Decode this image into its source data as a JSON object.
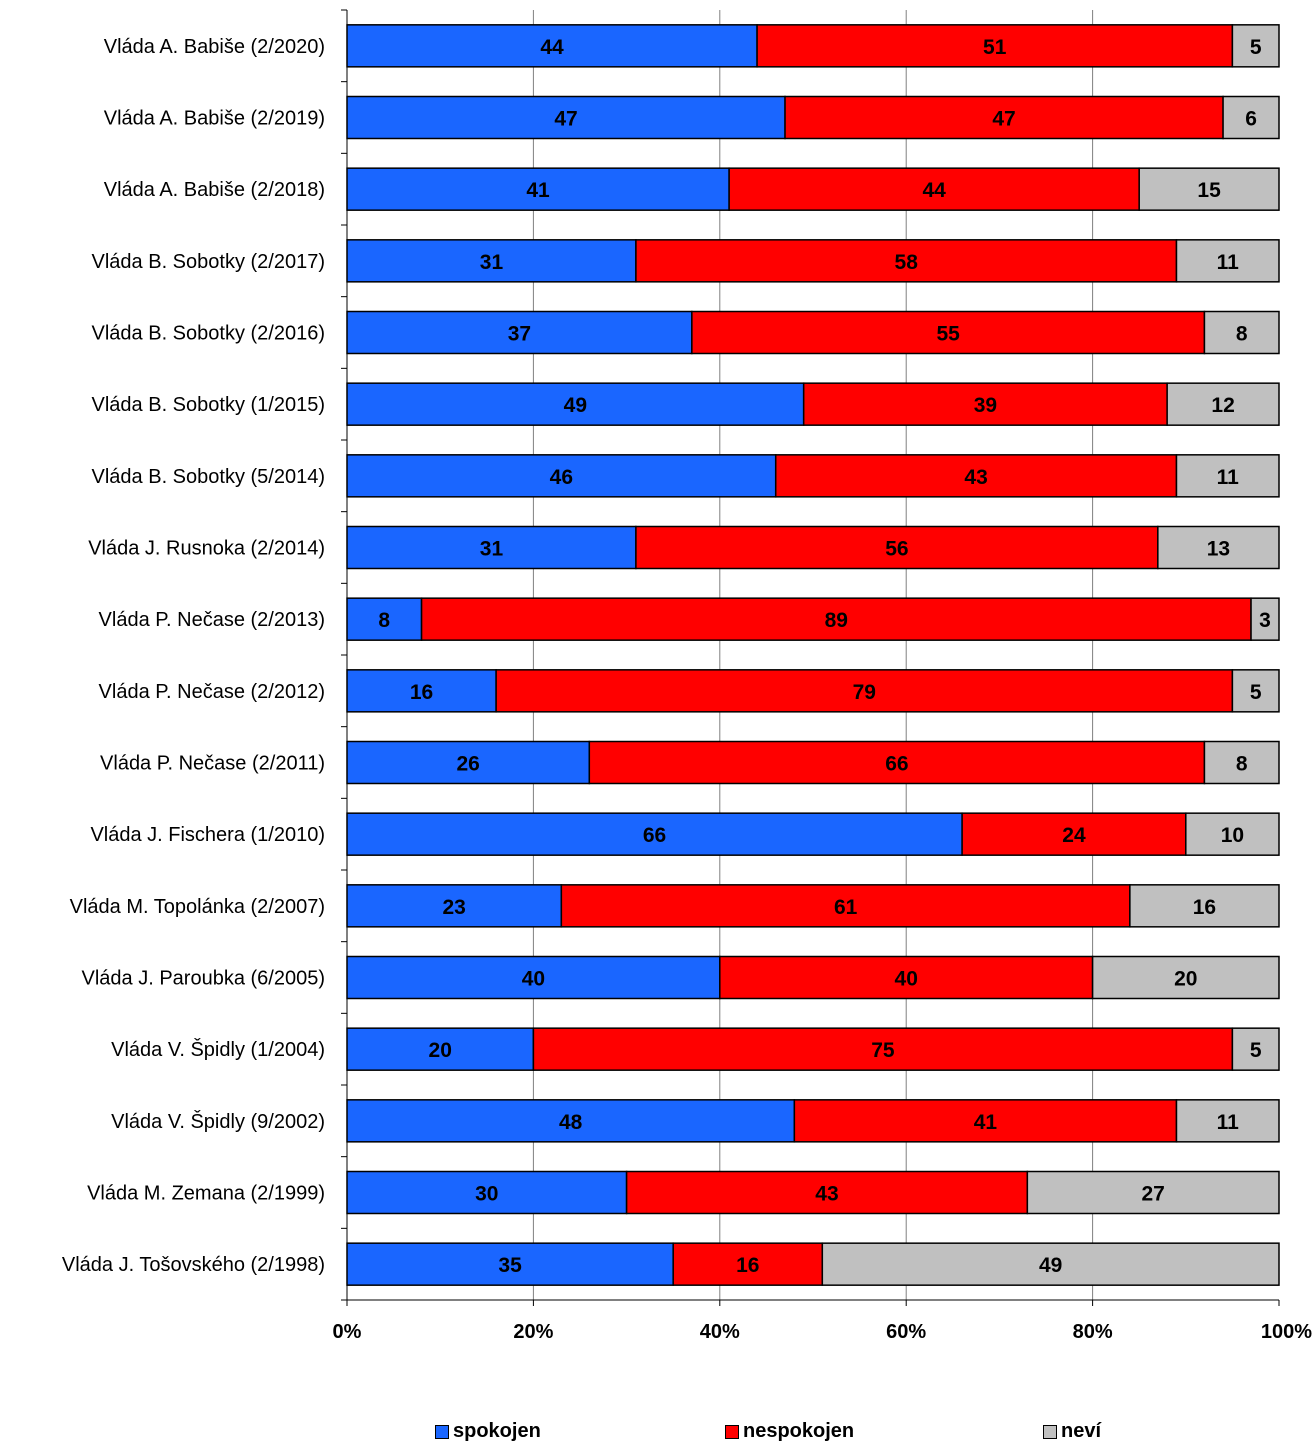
{
  "chart_data": {
    "type": "bar",
    "orientation": "horizontal",
    "stacked": "percent",
    "categories": [
      "Vláda A. Babiše (2/2020)",
      "Vláda A. Babiše (2/2019)",
      "Vláda A. Babiše (2/2018)",
      "Vláda B. Sobotky (2/2017)",
      "Vláda B. Sobotky (2/2016)",
      "Vláda B. Sobotky (1/2015)",
      "Vláda B. Sobotky (5/2014)",
      "Vláda J. Rusnoka (2/2014)",
      "Vláda P. Nečase (2/2013)",
      "Vláda P. Nečase (2/2012)",
      "Vláda P. Nečase (2/2011)",
      "Vláda J. Fischera (1/2010)",
      "Vláda M. Topolánka (2/2007)",
      "Vláda J. Paroubka (6/2005)",
      "Vláda V. Špidly (1/2004)",
      "Vláda V. Špidly (9/2002)",
      "Vláda M. Zemana (2/1999)",
      "Vláda J. Tošovského (2/1998)"
    ],
    "series": [
      {
        "name": "spokojen",
        "color": "#1a66ff",
        "values": [
          44,
          47,
          41,
          31,
          37,
          49,
          46,
          31,
          8,
          16,
          26,
          66,
          23,
          40,
          20,
          48,
          30,
          35
        ]
      },
      {
        "name": "nespokojen",
        "color": "#ff0000",
        "values": [
          51,
          47,
          44,
          58,
          55,
          39,
          43,
          56,
          89,
          79,
          66,
          24,
          61,
          40,
          75,
          41,
          43,
          16
        ]
      },
      {
        "name": "neví",
        "color": "#c0c0c0",
        "values": [
          5,
          6,
          15,
          11,
          8,
          12,
          11,
          13,
          3,
          5,
          8,
          10,
          16,
          20,
          5,
          11,
          27,
          49
        ]
      }
    ],
    "xticks": [
      "0%",
      "20%",
      "40%",
      "60%",
      "80%",
      "100%"
    ],
    "xlim": [
      0,
      100
    ],
    "grid": true,
    "legend_position": "bottom",
    "title": "",
    "xlabel": "",
    "ylabel": ""
  }
}
